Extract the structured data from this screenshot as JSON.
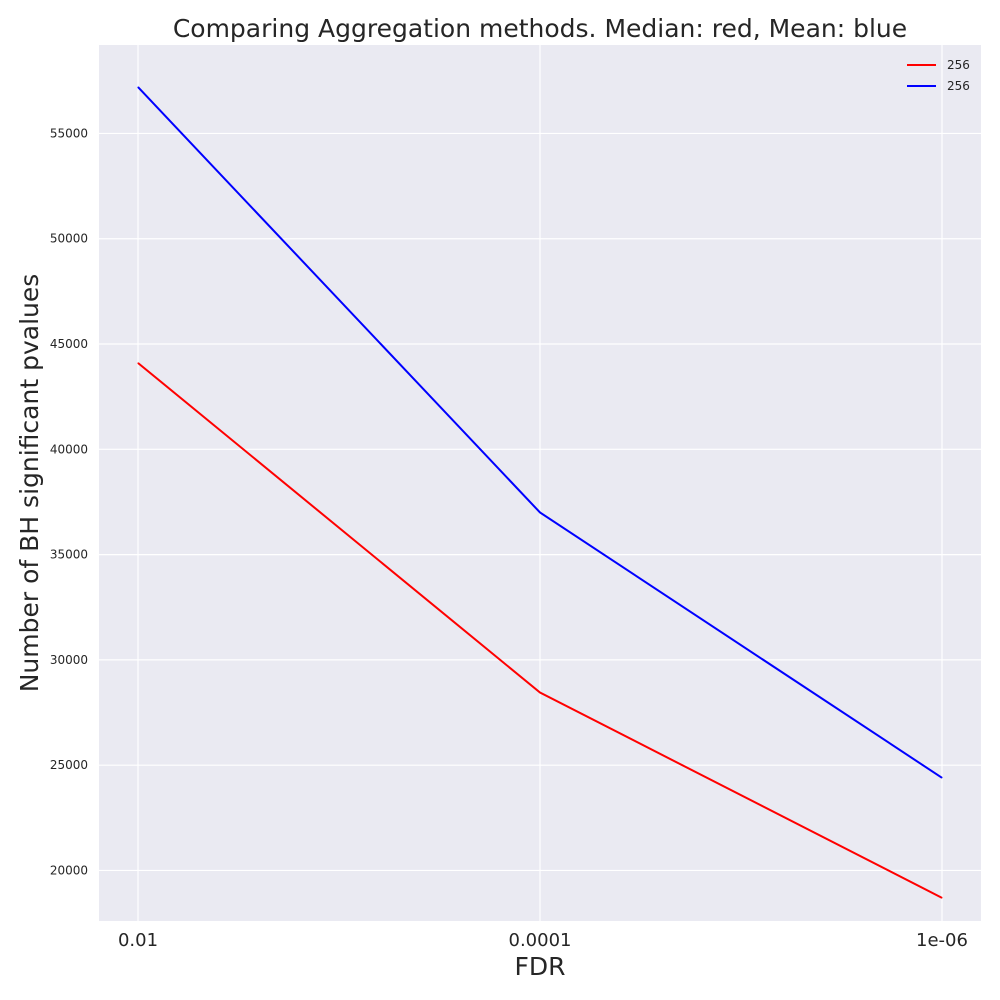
{
  "chart_data": {
    "type": "line",
    "title": "Comparing Aggregation methods. Median: red, Mean: blue",
    "xlabel": "FDR",
    "ylabel": "Number of BH significant pvalues",
    "categories": [
      "0.01",
      "0.0001",
      "1e-06"
    ],
    "yticks": [
      20000,
      25000,
      30000,
      35000,
      40000,
      45000,
      50000,
      55000
    ],
    "ylim": [
      17600,
      59200
    ],
    "grid": true,
    "legend_position": "top-right",
    "series": [
      {
        "name": "256",
        "color": "#ff0000",
        "values": [
          44100,
          28450,
          18700
        ]
      },
      {
        "name": "256",
        "color": "#0000ff",
        "values": [
          57200,
          37000,
          24400
        ]
      }
    ],
    "background_color": "#eaeaf2",
    "grid_color": "#ffffff"
  }
}
